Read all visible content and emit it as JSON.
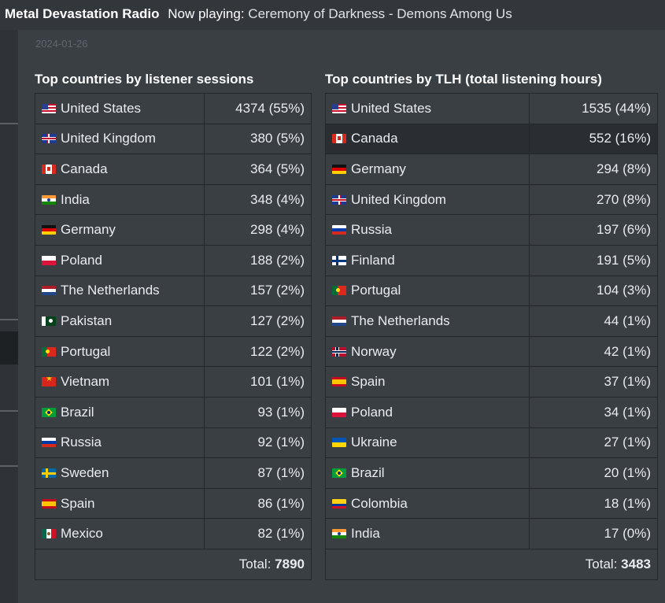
{
  "topbar": {
    "station": "Metal Devastation Radio",
    "now_playing_label": "Now playing:",
    "now_playing_track": "Ceremony of Darkness - Demons Among Us"
  },
  "date": "2024-01-26",
  "sessions_table": {
    "title": "Top countries by listener sessions",
    "rows": [
      {
        "flag": "us-flag-icon",
        "country": "United States",
        "value": "4374 (55%)"
      },
      {
        "flag": "uk-flag-icon",
        "country": "United Kingdom",
        "value": "380 (5%)"
      },
      {
        "flag": "ca-flag-icon",
        "country": "Canada",
        "value": "364 (5%)"
      },
      {
        "flag": "in-flag-icon",
        "country": "India",
        "value": "348 (4%)"
      },
      {
        "flag": "de-flag-icon",
        "country": "Germany",
        "value": "298 (4%)"
      },
      {
        "flag": "pl-flag-icon",
        "country": "Poland",
        "value": "188 (2%)"
      },
      {
        "flag": "nl-flag-icon",
        "country": "The Netherlands",
        "value": "157 (2%)"
      },
      {
        "flag": "pk-flag-icon",
        "country": "Pakistan",
        "value": "127 (2%)"
      },
      {
        "flag": "pt-flag-icon",
        "country": "Portugal",
        "value": "122 (2%)"
      },
      {
        "flag": "vn-flag-icon",
        "country": "Vietnam",
        "value": "101 (1%)"
      },
      {
        "flag": "br-flag-icon",
        "country": "Brazil",
        "value": "93 (1%)"
      },
      {
        "flag": "ru-flag-icon",
        "country": "Russia",
        "value": "92 (1%)"
      },
      {
        "flag": "se-flag-icon",
        "country": "Sweden",
        "value": "87 (1%)"
      },
      {
        "flag": "es-flag-icon",
        "country": "Spain",
        "value": "86 (1%)"
      },
      {
        "flag": "mx-flag-icon",
        "country": "Mexico",
        "value": "82 (1%)"
      }
    ],
    "total_label": "Total:",
    "total_value": "7890"
  },
  "tlh_table": {
    "title": "Top countries by TLH (total listening hours)",
    "rows": [
      {
        "flag": "us-flag-icon",
        "country": "United States",
        "value": "1535 (44%)"
      },
      {
        "flag": "ca-flag-icon",
        "country": "Canada",
        "value": "552 (16%)"
      },
      {
        "flag": "de-flag-icon",
        "country": "Germany",
        "value": "294 (8%)"
      },
      {
        "flag": "uk-flag-icon",
        "country": "United Kingdom",
        "value": "270 (8%)"
      },
      {
        "flag": "ru-flag-icon",
        "country": "Russia",
        "value": "197 (6%)"
      },
      {
        "flag": "fi-flag-icon",
        "country": "Finland",
        "value": "191 (5%)"
      },
      {
        "flag": "pt-flag-icon",
        "country": "Portugal",
        "value": "104 (3%)"
      },
      {
        "flag": "nl-flag-icon",
        "country": "The Netherlands",
        "value": "44 (1%)"
      },
      {
        "flag": "no-flag-icon",
        "country": "Norway",
        "value": "42 (1%)"
      },
      {
        "flag": "es-flag-icon",
        "country": "Spain",
        "value": "37 (1%)"
      },
      {
        "flag": "pl-flag-icon",
        "country": "Poland",
        "value": "34 (1%)"
      },
      {
        "flag": "ua-flag-icon",
        "country": "Ukraine",
        "value": "27 (1%)"
      },
      {
        "flag": "br-flag-icon",
        "country": "Brazil",
        "value": "20 (1%)"
      },
      {
        "flag": "co-flag-icon",
        "country": "Colombia",
        "value": "18 (1%)"
      },
      {
        "flag": "in-flag-icon",
        "country": "India",
        "value": "17 (0%)"
      }
    ],
    "total_label": "Total:",
    "total_value": "3483"
  },
  "colors": {
    "background": "#3a3f44",
    "topbar": "#33373c",
    "highlight_row": "#2a2e32",
    "border": "#23272b",
    "text": "#e9ecef"
  }
}
